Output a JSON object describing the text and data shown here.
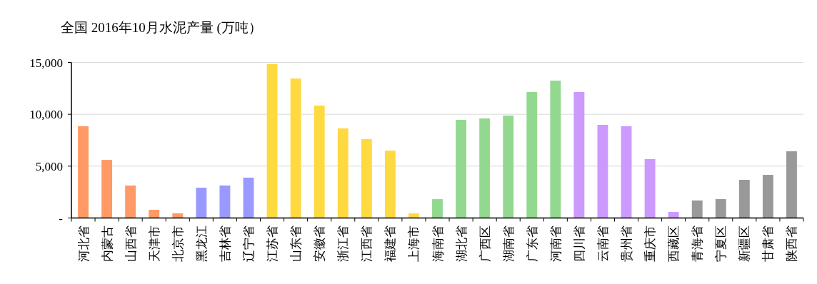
{
  "chart_data": {
    "type": "bar",
    "title": "全国 2016年10月水泥产量 (万吨）",
    "categories": [
      "河北省",
      "内蒙古",
      "山西省",
      "天津市",
      "北京市",
      "黑龙江",
      "吉林省",
      "辽宁省",
      "江苏省",
      "山东省",
      "安徽省",
      "浙江省",
      "江西省",
      "福建省",
      "上海市",
      "海南省",
      "湖北省",
      "广西区",
      "湖南省",
      "广东省",
      "河南省",
      "四川省",
      "云南省",
      "贵州省",
      "重庆市",
      "西藏区",
      "青海省",
      "宁夏区",
      "新疆区",
      "甘肃省",
      "陕西省"
    ],
    "values": [
      8850,
      5600,
      3130,
      790,
      450,
      2920,
      3130,
      3890,
      14830,
      13450,
      10840,
      8640,
      7600,
      6500,
      450,
      1820,
      9460,
      9600,
      9880,
      12150,
      13250,
      12150,
      8980,
      8850,
      5680,
      580,
      1690,
      1820,
      3680,
      4160,
      6430
    ],
    "colors": [
      "#ff9966",
      "#ff9966",
      "#ff9966",
      "#ff9966",
      "#ff9966",
      "#9999ff",
      "#9999ff",
      "#9999ff",
      "#ffd940",
      "#ffd940",
      "#ffd940",
      "#ffd940",
      "#ffd940",
      "#ffd940",
      "#ffd940",
      "#92d98f",
      "#92d98f",
      "#92d98f",
      "#92d98f",
      "#92d98f",
      "#92d98f",
      "#cc99ff",
      "#cc99ff",
      "#cc99ff",
      "#cc99ff",
      "#cc99ff",
      "#999999",
      "#999999",
      "#999999",
      "#999999",
      "#999999"
    ],
    "ylim": [
      0,
      15000
    ],
    "yticks": [
      {
        "value": 0,
        "label": "-"
      },
      {
        "value": 5000,
        "label": "5,000"
      },
      {
        "value": 10000,
        "label": "10,000"
      },
      {
        "value": 15000,
        "label": "15,000"
      }
    ],
    "grid": "y"
  }
}
